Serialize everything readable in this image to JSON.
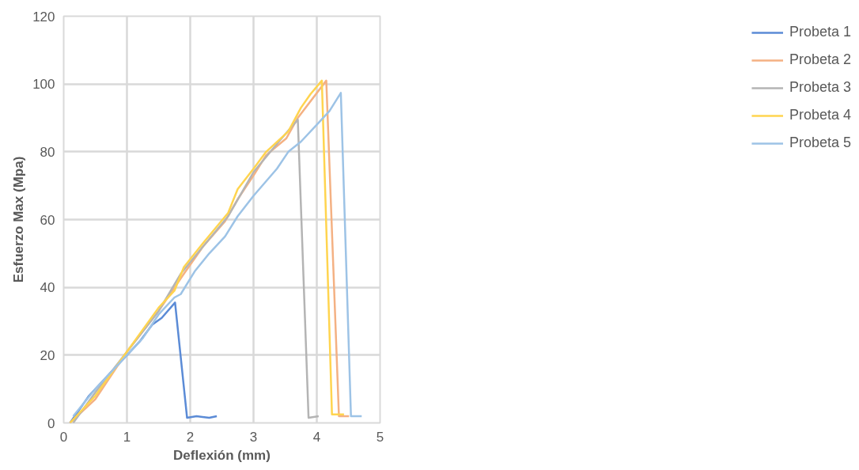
{
  "chart_data": {
    "type": "line",
    "xlabel": "Deflexión (mm)",
    "ylabel": "Esfuerzo Max (Mpa)",
    "xlim": [
      0,
      5
    ],
    "xticks": [
      0,
      1,
      2,
      3,
      4,
      5
    ],
    "ylim": [
      0,
      120
    ],
    "yticks": [
      0,
      20,
      40,
      60,
      80,
      100,
      120
    ],
    "grid": true,
    "legend": "right",
    "marker": "none",
    "line_style": "solid",
    "series": [
      {
        "name": "Probeta 1",
        "color": "#5b8bd6",
        "x": [
          0.1,
          0.4,
          0.8,
          1.0,
          1.2,
          1.4,
          1.55,
          1.76,
          1.95,
          2.1,
          2.3,
          2.42
        ],
        "values": [
          0,
          8,
          16,
          20,
          24,
          29,
          31,
          35.5,
          1.5,
          2,
          1.5,
          2
        ]
      },
      {
        "name": "Probeta 2",
        "color": "#f4b183",
        "x": [
          0.1,
          0.5,
          1.0,
          1.5,
          1.9,
          2.2,
          2.55,
          2.75,
          3.0,
          3.2,
          3.52,
          3.7,
          4.15,
          4.35,
          4.51
        ],
        "values": [
          0,
          7,
          21,
          33,
          44,
          52,
          59.5,
          66,
          73,
          79,
          84,
          90,
          101,
          2,
          2
        ]
      },
      {
        "name": "Probeta 3",
        "color": "#b4b4b4",
        "x": [
          0.15,
          0.5,
          1.0,
          1.5,
          1.85,
          2.2,
          2.6,
          3.0,
          3.4,
          3.7,
          3.87,
          4.03
        ],
        "values": [
          0,
          9,
          21,
          33,
          44,
          52,
          61,
          74,
          83,
          89.5,
          1.5,
          2
        ]
      },
      {
        "name": "Probeta 4",
        "color": "#ffd44f",
        "x": [
          0.1,
          0.5,
          1.0,
          1.5,
          1.75,
          1.9,
          2.2,
          2.6,
          2.75,
          3.0,
          3.2,
          3.55,
          3.75,
          3.9,
          4.08,
          4.24,
          4.43
        ],
        "values": [
          0,
          8,
          21,
          34,
          39,
          46,
          53,
          62,
          69,
          75,
          80,
          86,
          93,
          97,
          101,
          2.5,
          2.5
        ]
      },
      {
        "name": "Probeta 5",
        "color": "#9dc3e6",
        "x": [
          0.15,
          0.5,
          1.0,
          1.25,
          1.5,
          1.75,
          1.85,
          2.07,
          2.3,
          2.55,
          2.75,
          3.0,
          3.37,
          3.55,
          3.75,
          4.0,
          4.2,
          4.38,
          4.54,
          4.71
        ],
        "values": [
          2,
          10,
          20,
          25,
          32,
          37,
          38,
          44.7,
          50,
          55,
          61,
          67,
          75,
          80,
          83,
          88,
          92,
          97.4,
          2,
          2
        ]
      }
    ]
  }
}
